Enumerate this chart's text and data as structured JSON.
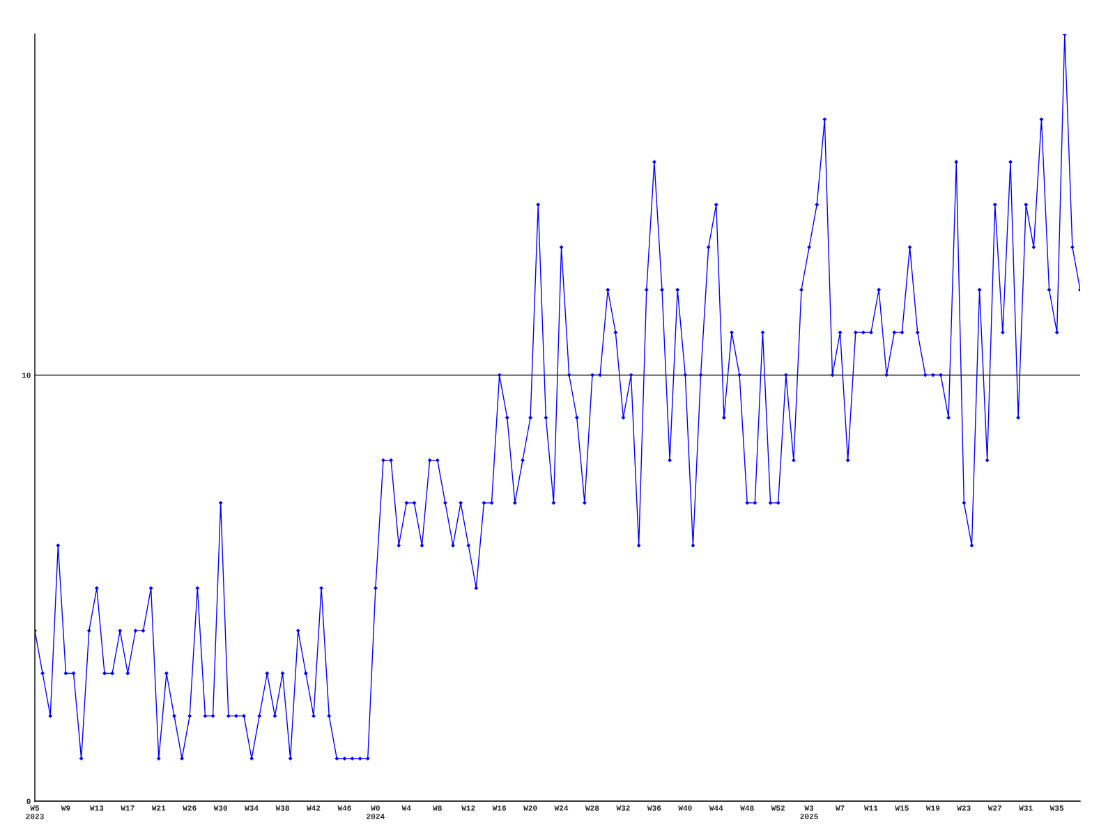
{
  "chart_data": {
    "type": "line",
    "categories": [
      "W5\n2023",
      null,
      null,
      null,
      "W9",
      null,
      null,
      null,
      "W13",
      null,
      null,
      null,
      "W17",
      null,
      null,
      null,
      "W21",
      null,
      null,
      null,
      "W26",
      null,
      null,
      null,
      "W30",
      null,
      null,
      null,
      "W34",
      null,
      null,
      null,
      "W38",
      null,
      null,
      null,
      "W42",
      null,
      null,
      null,
      "W46",
      null,
      null,
      null,
      "W0\n2024",
      null,
      null,
      null,
      "W4",
      null,
      null,
      null,
      "W8",
      null,
      null,
      null,
      "W12",
      null,
      null,
      null,
      "W16",
      null,
      null,
      null,
      "W20",
      null,
      null,
      null,
      "W24",
      null,
      null,
      null,
      "W28",
      null,
      null,
      null,
      "W32",
      null,
      null,
      null,
      "W36",
      null,
      null,
      null,
      "W40",
      null,
      null,
      null,
      "W44",
      null,
      null,
      null,
      "W48",
      null,
      null,
      null,
      "W52",
      null,
      null,
      null,
      "W3\n2025",
      null,
      null,
      null,
      "W7",
      null,
      null,
      null,
      "W11",
      null,
      null,
      null,
      "W15",
      null,
      null,
      null,
      "W19",
      null,
      null,
      null,
      "W23",
      null,
      null,
      null,
      "W27",
      null,
      null,
      null,
      "W31",
      null,
      null,
      null,
      "W35",
      null,
      null,
      null
    ],
    "series": [
      {
        "color": "#0000ff",
        "values": [
          4,
          3,
          2,
          6,
          3,
          3,
          1,
          4,
          5,
          3,
          3,
          4,
          3,
          4,
          4,
          5,
          1,
          3,
          2,
          1,
          2,
          5,
          2,
          2,
          7,
          2,
          2,
          2,
          1,
          2,
          3,
          2,
          3,
          1,
          4,
          3,
          2,
          5,
          2,
          1,
          1,
          1,
          1,
          1,
          5,
          8,
          8,
          6,
          7,
          7,
          6,
          8,
          8,
          7,
          6,
          7,
          6,
          5,
          7,
          7,
          10,
          9,
          7,
          8,
          9,
          14,
          9,
          7,
          13,
          10,
          9,
          7,
          10,
          10,
          12,
          11,
          9,
          10,
          6,
          12,
          15,
          12,
          8,
          12,
          10,
          6,
          10,
          13,
          14,
          9,
          11,
          10,
          7,
          7,
          11,
          7,
          7,
          10,
          8,
          12,
          13,
          14,
          16,
          10,
          11,
          8,
          11,
          11,
          11,
          12,
          10,
          11,
          11,
          13,
          11,
          10,
          10,
          10,
          9,
          15,
          7,
          6,
          12,
          8,
          14,
          11,
          15,
          9,
          14,
          13,
          16,
          12,
          11,
          18,
          13,
          12
        ]
      }
    ],
    "ylim": [
      0,
      18
    ],
    "yticks": [
      0,
      10
    ],
    "grid": "y",
    "marker": "diamond",
    "line_style": "solid"
  }
}
